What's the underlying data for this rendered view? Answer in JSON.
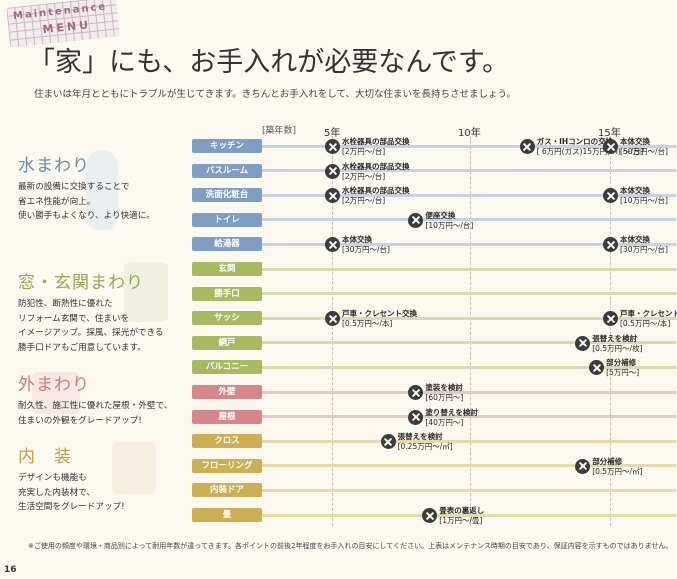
{
  "header": {
    "stamp_line1": "Maintenance",
    "stamp_line2": "MENU",
    "title": "「家」にも、お手入れが必要なんです。",
    "subtitle": "住まいは年月とともにトラブルが生じてきます。きちんとお手入れをして、大切な住まいを長持ちさせましょう。"
  },
  "categories": [
    {
      "title": "水まわり",
      "desc": [
        "最新の設備に交換することで",
        "省エネ性能が向上。",
        "使い勝手もよくなり、より快適に。"
      ]
    },
    {
      "title": "窓・玄関まわり",
      "desc": [
        "防犯性、断熱性に優れた",
        "リフォーム玄関で、住まいを",
        "イメージアップ。採風、採光ができる",
        "勝手口ドアもご用意しています。"
      ]
    },
    {
      "title": "外まわり",
      "desc": [
        "耐久性、施工性に優れた屋根・外壁で、",
        "住まいの外観をグレードアップ!"
      ]
    },
    {
      "title": "内　装",
      "desc": [
        "デザインも機能も",
        "充実した内装材で、",
        "生活空間をグレードアップ!"
      ]
    }
  ],
  "timeline": {
    "axis_label": "[築年数]",
    "years": [
      "5年",
      "10年",
      "15年"
    ],
    "rows": [
      {
        "label": "キッチン",
        "events": [
          {
            "year": 5,
            "t1": "水栓器具の部品交換",
            "t2": "[2万円～/台]"
          },
          {
            "year": 12,
            "t1": "ガス・IHコンロの交換",
            "t2": "[ 6万円(ガス)15万円(IH) ～/台]"
          },
          {
            "year": 15,
            "t1": "本体交換",
            "t2": "[50万円～/台]"
          }
        ]
      },
      {
        "label": "バスルーム",
        "events": [
          {
            "year": 5,
            "t1": "水栓器具の部品交換",
            "t2": "[2万円～/台]"
          }
        ]
      },
      {
        "label": "洗面化粧台",
        "events": [
          {
            "year": 5,
            "t1": "水栓器具の部品交換",
            "t2": "[2万円～/台]"
          },
          {
            "year": 15,
            "t1": "本体交換",
            "t2": "[10万円～/台]"
          }
        ]
      },
      {
        "label": "トイレ",
        "events": [
          {
            "year": 8,
            "t1": "便座交換",
            "t2": "[10万円～/台]"
          }
        ]
      },
      {
        "label": "給湯器",
        "events": [
          {
            "year": 5,
            "t1": "本体交換",
            "t2": "[30万円～/台]"
          },
          {
            "year": 15,
            "t1": "本体交換",
            "t2": "[30万円～/台]"
          }
        ]
      },
      {
        "label": "玄関",
        "events": []
      },
      {
        "label": "勝手口",
        "events": []
      },
      {
        "label": "サッシ",
        "events": [
          {
            "year": 5,
            "t1": "戸車・クレセント交換",
            "t2": "[0.5万円～/本]"
          },
          {
            "year": 15,
            "t1": "戸車・クレセント交換",
            "t2": "[0.5万円～/本]"
          }
        ]
      },
      {
        "label": "網戸",
        "events": [
          {
            "year": 14,
            "t1": "張替えを検討",
            "t2": "[0.5万円～/枚]"
          }
        ]
      },
      {
        "label": "バルコニー",
        "events": [
          {
            "year": 14.5,
            "t1": "部分補修",
            "t2": "[5万円～]"
          }
        ]
      },
      {
        "label": "外壁",
        "events": [
          {
            "year": 8,
            "t1": "塗装を検討",
            "t2": "[60万円～]"
          }
        ]
      },
      {
        "label": "屋根",
        "events": [
          {
            "year": 8,
            "t1": "塗り替えを検討",
            "t2": "[40万円～]"
          }
        ]
      },
      {
        "label": "クロス",
        "events": [
          {
            "year": 7,
            "t1": "張替えを検討",
            "t2": "[0.25万円～/㎡]"
          }
        ]
      },
      {
        "label": "フローリング",
        "events": [
          {
            "year": 14,
            "t1": "部分補修",
            "t2": "[0.5万円～/㎡]"
          }
        ]
      },
      {
        "label": "内装ドア",
        "events": []
      },
      {
        "label": "畳",
        "events": [
          {
            "year": 8.5,
            "t1": "畳表の裏返し",
            "t2": "[1万円～/畳]"
          }
        ]
      }
    ]
  },
  "footer": {
    "note": "※ご使用の頻度や環境・商品別によって耐用年数が違ってきます。各ポイントの前後2年程度をお手入れの目安にしてください。上表はメンテナンス時期の目安であり、保証内容を示すものではありません。",
    "page_number": "16"
  }
}
